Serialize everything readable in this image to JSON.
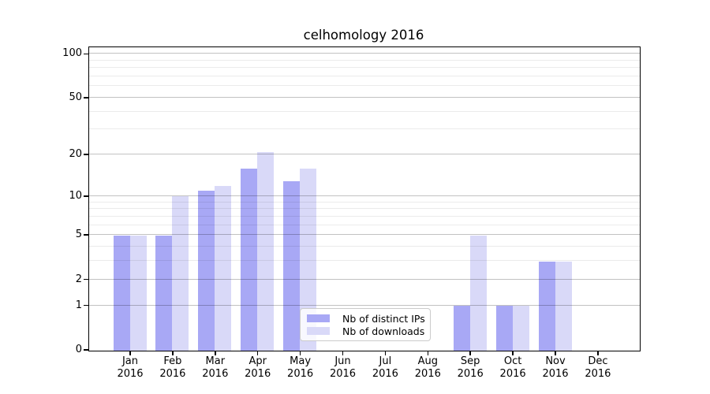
{
  "chart_data": {
    "type": "bar",
    "title": "celhomology 2016",
    "categories": [
      "Jan",
      "Feb",
      "Mar",
      "Apr",
      "May",
      "Jun",
      "Jul",
      "Aug",
      "Sep",
      "Oct",
      "Nov",
      "Dec"
    ],
    "year_label": "2016",
    "series": [
      {
        "name": "Nb of distinct IPs",
        "color": "#a8a8f5",
        "values": [
          5,
          5,
          11,
          16,
          13,
          0,
          0,
          0,
          1,
          1,
          3,
          0
        ]
      },
      {
        "name": "Nb of downloads",
        "color": "#d9d9f8",
        "values": [
          5,
          10,
          12,
          21,
          16,
          0,
          0,
          0,
          5,
          1,
          3,
          0
        ]
      }
    ],
    "xlabel": "",
    "ylabel": "",
    "y_scale": "log1p_base2 (y position proportional to log2(1+value))",
    "y_tick_labels": [
      100,
      50,
      20,
      10,
      5,
      2,
      1,
      0
    ],
    "y_gridlines": [
      1,
      2,
      3,
      4,
      5,
      6,
      7,
      8,
      9,
      10,
      20,
      30,
      40,
      50,
      60,
      70,
      80,
      90,
      100
    ],
    "ylim": [
      0,
      111
    ],
    "grid": true,
    "legend_position": "inside lower-center"
  }
}
